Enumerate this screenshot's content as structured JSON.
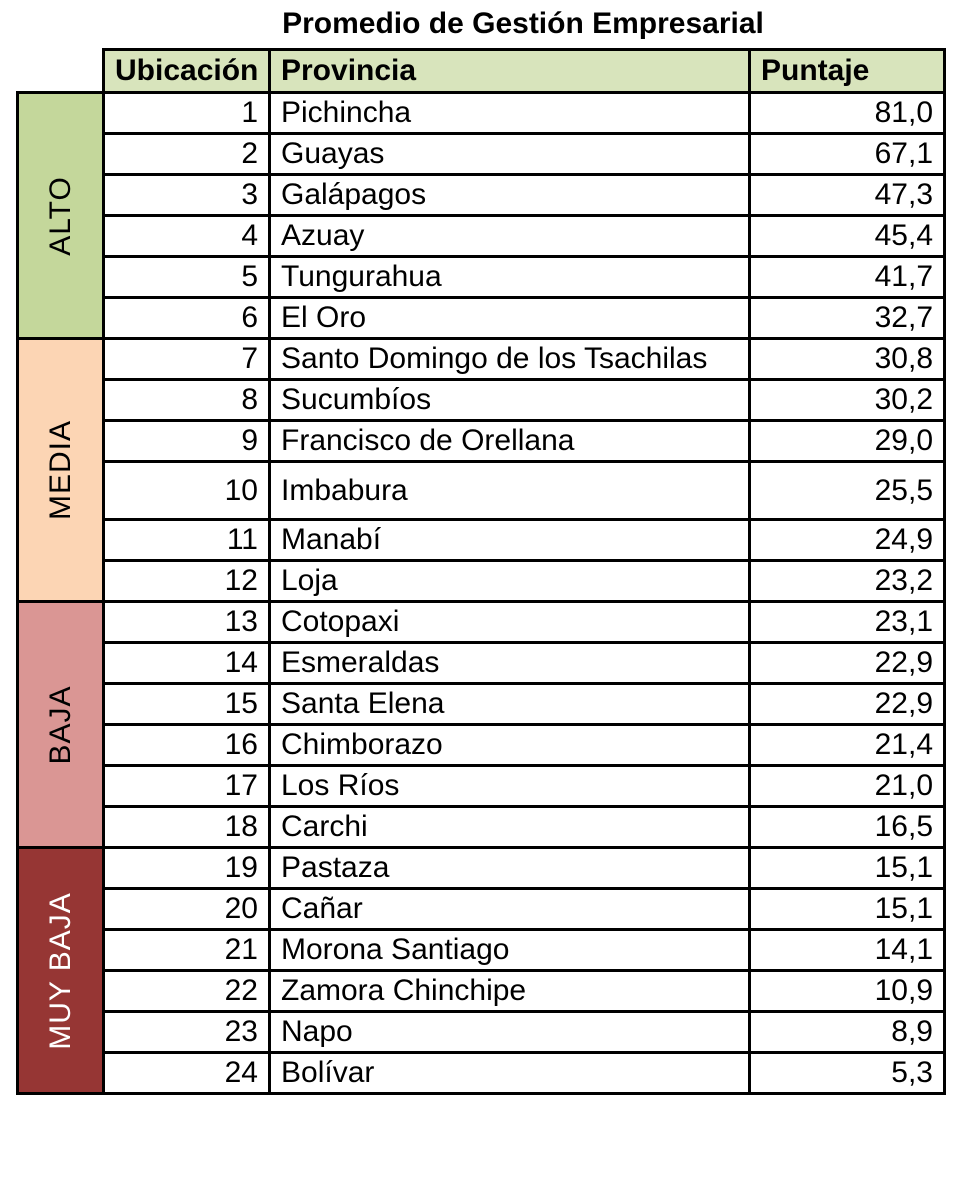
{
  "chart_data": {
    "type": "table",
    "title": "Promedio de Gestión Empresarial",
    "columns": [
      "Ubicación",
      "Provincia",
      "Puntaje"
    ],
    "groups": [
      {
        "label": "ALTO",
        "color": "#c4d79b",
        "text_color": "#000000",
        "rows": [
          {
            "rank": "1",
            "province": "Pichincha",
            "score": "81,0"
          },
          {
            "rank": "2",
            "province": "Guayas",
            "score": "67,1"
          },
          {
            "rank": "3",
            "province": "Galápagos",
            "score": "47,3"
          },
          {
            "rank": "4",
            "province": "Azuay",
            "score": "45,4"
          },
          {
            "rank": "5",
            "province": "Tungurahua",
            "score": "41,7"
          },
          {
            "rank": "6",
            "province": "El Oro",
            "score": "32,7"
          }
        ]
      },
      {
        "label": "MEDIA",
        "color": "#fcd5b4",
        "text_color": "#000000",
        "rows": [
          {
            "rank": "7",
            "province": "Santo Domingo de los Tsachilas",
            "score": "30,8"
          },
          {
            "rank": "8",
            "province": "Sucumbíos",
            "score": "30,2"
          },
          {
            "rank": "9",
            "province": "Francisco de Orellana",
            "score": "29,0"
          },
          {
            "rank": "10",
            "province": "Imbabura",
            "score": "25,5"
          },
          {
            "rank": "11",
            "province": "Manabí",
            "score": "24,9"
          },
          {
            "rank": "12",
            "province": "Loja",
            "score": "23,2"
          }
        ]
      },
      {
        "label": "BAJA",
        "color": "#da9694",
        "text_color": "#000000",
        "rows": [
          {
            "rank": "13",
            "province": "Cotopaxi",
            "score": "23,1"
          },
          {
            "rank": "14",
            "province": "Esmeraldas",
            "score": "22,9"
          },
          {
            "rank": "15",
            "province": "Santa Elena",
            "score": "22,9"
          },
          {
            "rank": "16",
            "province": "Chimborazo",
            "score": "21,4"
          },
          {
            "rank": "17",
            "province": "Los Ríos",
            "score": "21,0"
          },
          {
            "rank": "18",
            "province": "Carchi",
            "score": "16,5"
          }
        ]
      },
      {
        "label": "MUY BAJA",
        "color": "#963634",
        "text_color": "#ffffff",
        "rows": [
          {
            "rank": "19",
            "province": "Pastaza",
            "score": "15,1"
          },
          {
            "rank": "20",
            "province": "Cañar",
            "score": "15,1"
          },
          {
            "rank": "21",
            "province": "Morona Santiago",
            "score": "14,1"
          },
          {
            "rank": "22",
            "province": "Zamora Chinchipe",
            "score": "10,9"
          },
          {
            "rank": "23",
            "province": "Napo",
            "score": "8,9"
          },
          {
            "rank": "24",
            "province": "Bolívar",
            "score": "5,3"
          }
        ]
      }
    ]
  }
}
